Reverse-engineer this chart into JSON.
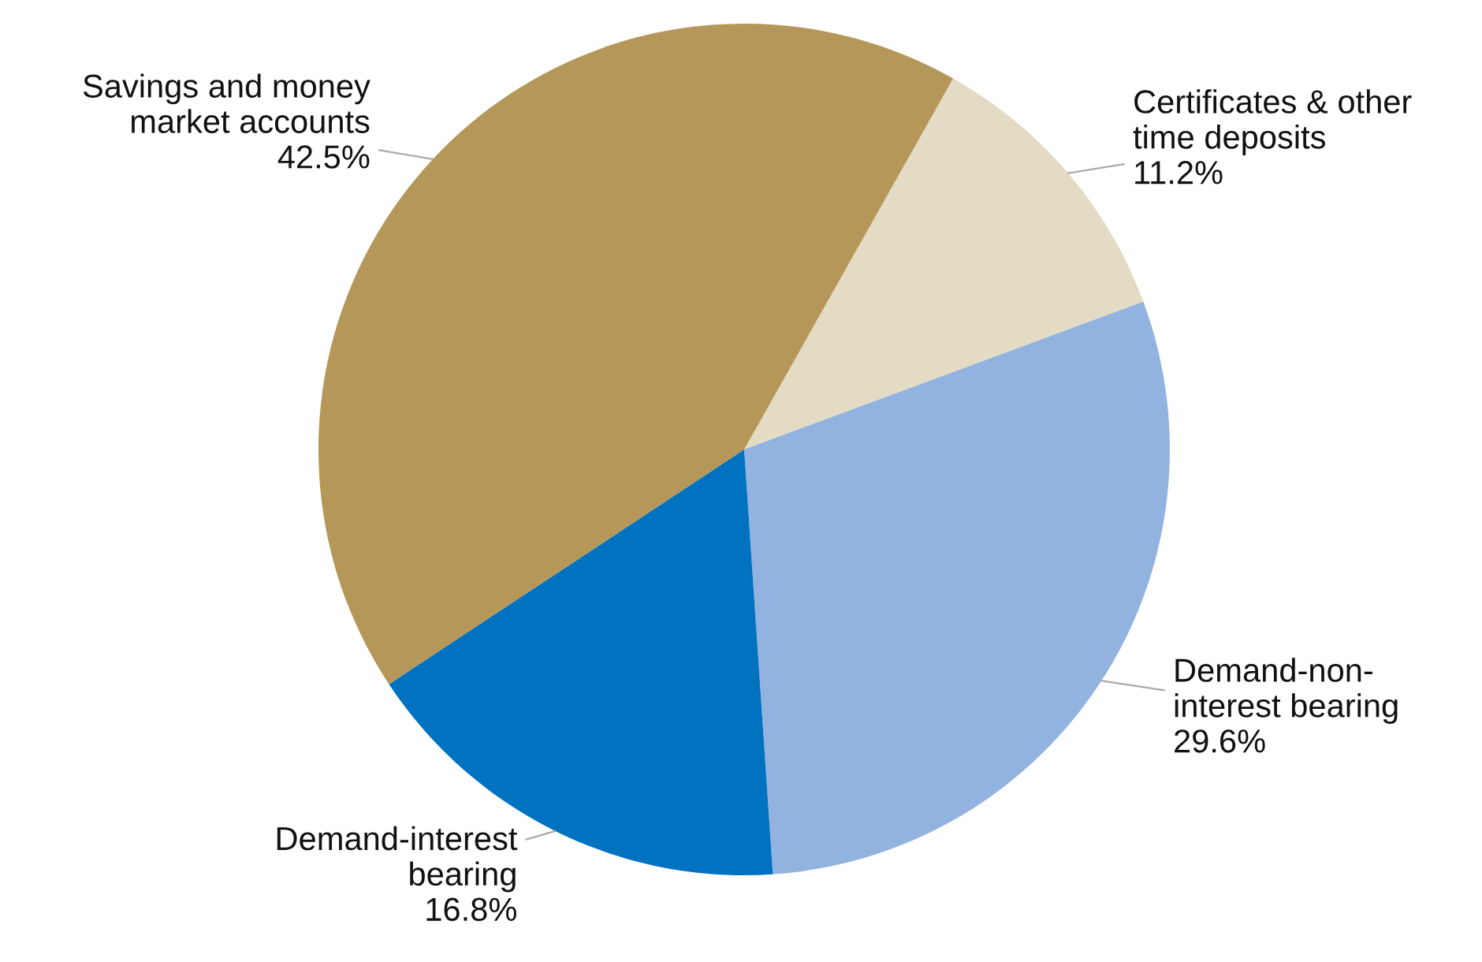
{
  "chart_data": {
    "type": "pie",
    "categories": [
      "Certificates & other\ntime deposits",
      "Demand-non-\ninterest bearing",
      "Demand-interest\nbearing",
      "Savings and money\nmarket accounts"
    ],
    "values": [
      11.2,
      29.6,
      16.8,
      42.5
    ],
    "value_labels": [
      "11.2%",
      "29.6%",
      "16.8%",
      "42.5%"
    ],
    "colors": [
      "#e3dbc3",
      "#92b3df",
      "#0072bf",
      "#b5975a"
    ],
    "legend": false
  }
}
